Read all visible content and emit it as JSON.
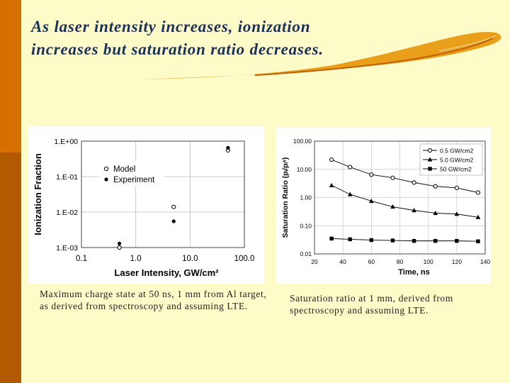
{
  "slide": {
    "title_line1": "As laser intensity increases, ionization",
    "title_line2": "increases but saturation ratio decreases.",
    "caption_left": "Maximum charge state at 50 ns, 1 mm from Al target, as derived from spectroscopy and assuming LTE.",
    "caption_right": "Saturation ratio at 1 mm, derived from spectroscopy and assuming LTE."
  },
  "colors": {
    "background": "#fdfbc8",
    "title": "#1a2f5a",
    "bar_dark": "#b25a00",
    "bar_light": "#d46f00",
    "swoosh": "#e08a00"
  },
  "chart_data": [
    {
      "type": "scatter",
      "title": "",
      "xlabel": "Laser Intensity, GW/cm²",
      "ylabel": "Ionization Fraction",
      "xscale": "log",
      "yscale": "log",
      "xlim": [
        0.1,
        100.0
      ],
      "ylim": [
        0.001,
        1.0
      ],
      "x_ticks": [
        0.1,
        1.0,
        10.0,
        100.0
      ],
      "x_tick_labels": [
        "0.1",
        "1.0",
        "10.0",
        "100.0"
      ],
      "y_ticks": [
        1.0,
        0.1,
        0.01,
        0.001
      ],
      "y_tick_labels": [
        "1.E+00",
        "1.E-01",
        "1.E-02",
        "1.E-03"
      ],
      "grid": true,
      "legend_position": "upper-left",
      "series": [
        {
          "name": "Model",
          "marker": "open-circle",
          "x": [
            0.5,
            5.0,
            50.0
          ],
          "y": [
            0.001,
            0.014,
            0.55
          ]
        },
        {
          "name": "Experiment",
          "marker": "filled-circle",
          "x": [
            0.5,
            5.0,
            50.0
          ],
          "y": [
            0.0013,
            0.0055,
            0.65
          ]
        }
      ]
    },
    {
      "type": "line",
      "title": "",
      "xlabel": "Time, ns",
      "ylabel": "Saturation Ratio (pᵢ/pᵢˢ)",
      "yscale": "log",
      "xlim": [
        20,
        140
      ],
      "ylim": [
        0.01,
        100.0
      ],
      "x_ticks": [
        20,
        40,
        60,
        80,
        100,
        120,
        140
      ],
      "x_tick_labels": [
        "20",
        "40",
        "60",
        "80",
        "100",
        "120",
        "140"
      ],
      "y_ticks": [
        100.0,
        10.0,
        1.0,
        0.1,
        0.01
      ],
      "y_tick_labels": [
        "100.00",
        "10.00",
        "1.00",
        "0.10",
        "0.01"
      ],
      "grid": true,
      "legend_position": "upper-right",
      "x": [
        32,
        45,
        60,
        75,
        90,
        105,
        120,
        135
      ],
      "series": [
        {
          "name": "0.5 GW/cm2",
          "marker": "open-circle",
          "values": [
            22,
            12,
            6.5,
            5.0,
            3.4,
            2.5,
            2.2,
            1.5
          ]
        },
        {
          "name": "5.0 GW/cm2",
          "marker": "filled-triangle",
          "values": [
            2.7,
            1.3,
            0.75,
            0.47,
            0.35,
            0.28,
            0.26,
            0.2
          ]
        },
        {
          "name": "50 GW/cm2",
          "marker": "filled-square",
          "values": [
            0.035,
            0.033,
            0.031,
            0.03,
            0.029,
            0.029,
            0.029,
            0.028
          ]
        }
      ]
    }
  ]
}
